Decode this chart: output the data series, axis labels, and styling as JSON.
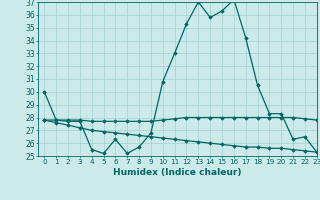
{
  "x": [
    0,
    1,
    2,
    3,
    4,
    5,
    6,
    7,
    8,
    9,
    10,
    11,
    12,
    13,
    14,
    15,
    16,
    17,
    18,
    19,
    20,
    21,
    22,
    23
  ],
  "line1": [
    30.0,
    27.8,
    27.7,
    27.7,
    25.5,
    25.2,
    26.3,
    25.2,
    25.7,
    26.8,
    30.8,
    33.0,
    35.3,
    37.0,
    35.8,
    36.3,
    37.2,
    34.2,
    30.5,
    28.3,
    28.3,
    26.3,
    26.5,
    25.3
  ],
  "line2": [
    27.8,
    27.8,
    27.8,
    27.8,
    27.7,
    27.7,
    27.7,
    27.7,
    27.7,
    27.7,
    27.8,
    27.9,
    28.0,
    28.0,
    28.0,
    28.0,
    28.0,
    28.0,
    28.0,
    28.0,
    28.0,
    28.0,
    27.9,
    27.8
  ],
  "line3": [
    27.8,
    27.6,
    27.4,
    27.2,
    27.0,
    26.9,
    26.8,
    26.7,
    26.6,
    26.5,
    26.4,
    26.3,
    26.2,
    26.1,
    26.0,
    25.9,
    25.8,
    25.7,
    25.7,
    25.6,
    25.6,
    25.5,
    25.4,
    25.3
  ],
  "bg_color": "#cceaea",
  "grid_color": "#aad4d4",
  "line_color": "#006666",
  "xlabel": "Humidex (Indice chaleur)",
  "ylim": [
    25,
    37
  ],
  "xlim": [
    -0.5,
    23
  ],
  "yticks": [
    25,
    26,
    27,
    28,
    29,
    30,
    31,
    32,
    33,
    34,
    35,
    36,
    37
  ],
  "xticks": [
    0,
    1,
    2,
    3,
    4,
    5,
    6,
    7,
    8,
    9,
    10,
    11,
    12,
    13,
    14,
    15,
    16,
    17,
    18,
    19,
    20,
    21,
    22,
    23
  ]
}
